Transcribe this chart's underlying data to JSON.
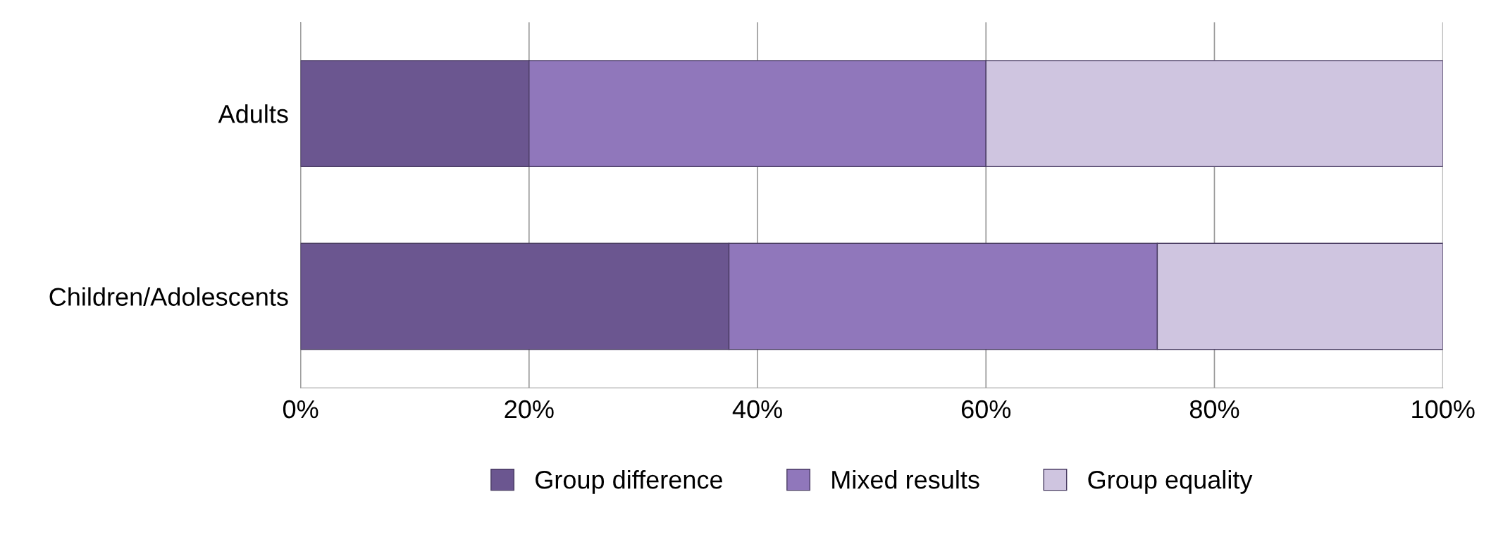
{
  "chart_data": {
    "type": "bar",
    "orientation": "horizontal",
    "stacked": true,
    "categories": [
      "Adults",
      "Children/Adolescents"
    ],
    "series": [
      {
        "name": "Group difference",
        "color": "#6b5690",
        "values": [
          20,
          37.5
        ]
      },
      {
        "name": "Mixed results",
        "color": "#9077bb",
        "values": [
          40,
          37.5
        ]
      },
      {
        "name": "Group equality",
        "color": "#cfc5e0",
        "values": [
          40,
          25
        ]
      }
    ],
    "xlim": [
      0,
      100
    ],
    "xticks": [
      {
        "value": 0,
        "label": "0%"
      },
      {
        "value": 20,
        "label": "20%"
      },
      {
        "value": 40,
        "label": "40%"
      },
      {
        "value": 60,
        "label": "60%"
      },
      {
        "value": 80,
        "label": "80%"
      },
      {
        "value": 100,
        "label": "100%"
      }
    ],
    "grid": "x",
    "legend": "bottom"
  }
}
